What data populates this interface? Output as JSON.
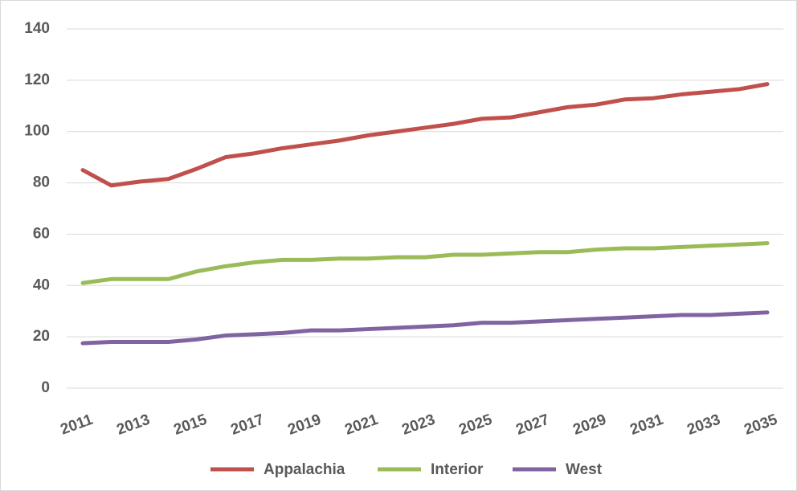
{
  "chart_data": {
    "type": "line",
    "x": [
      2011,
      2012,
      2013,
      2014,
      2015,
      2016,
      2017,
      2018,
      2019,
      2020,
      2021,
      2022,
      2023,
      2024,
      2025,
      2026,
      2027,
      2028,
      2029,
      2030,
      2031,
      2032,
      2033,
      2034,
      2035
    ],
    "xlim": [
      2011,
      2035
    ],
    "xticks": [
      2011,
      2013,
      2015,
      2017,
      2019,
      2021,
      2023,
      2025,
      2027,
      2029,
      2031,
      2033,
      2035
    ],
    "ylim": [
      0,
      140
    ],
    "yticks": [
      0,
      20,
      40,
      60,
      80,
      100,
      120,
      140
    ],
    "grid": true,
    "legend": "bottom",
    "series": [
      {
        "name": "Appalachia",
        "color": "#c0504d",
        "values": [
          85,
          79,
          80.5,
          81.5,
          85.5,
          90,
          91.5,
          93.5,
          95,
          96.5,
          98.5,
          100,
          101.5,
          103,
          105,
          105.5,
          107.5,
          109.5,
          110.5,
          112.5,
          113,
          114.5,
          115.5,
          116.5,
          118.5
        ]
      },
      {
        "name": "Interior",
        "color": "#9bbb59",
        "values": [
          41,
          42.5,
          42.5,
          42.5,
          45.5,
          47.5,
          49,
          50,
          50,
          50.5,
          50.5,
          51,
          51,
          52,
          52,
          52.5,
          53,
          53,
          54,
          54.5,
          54.5,
          55,
          55.5,
          56,
          56.5
        ]
      },
      {
        "name": "West",
        "color": "#8064a2",
        "values": [
          17.5,
          18,
          18,
          18,
          19,
          20.5,
          21,
          21.5,
          22.5,
          22.5,
          23,
          23.5,
          24,
          24.5,
          25.5,
          25.5,
          26,
          26.5,
          27,
          27.5,
          28,
          28.5,
          28.5,
          29,
          29.5
        ]
      }
    ]
  }
}
